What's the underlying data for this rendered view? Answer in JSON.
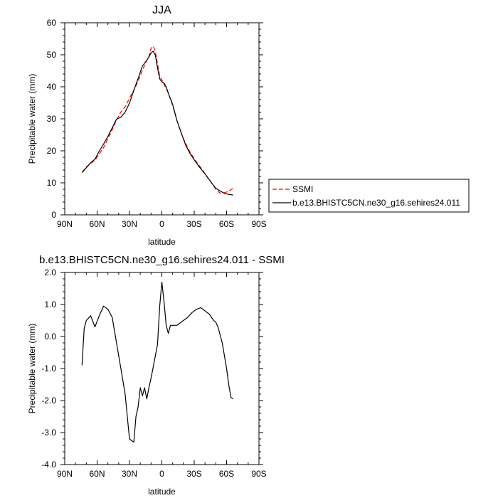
{
  "chart_data": [
    {
      "type": "line",
      "title": "JJA",
      "xlabel": "latitude",
      "ylabel": "Precipitable water (mm)",
      "xlim": [
        90,
        -90
      ],
      "ylim": [
        0,
        60
      ],
      "x_ticks": [
        {
          "value": 90,
          "label": "90N"
        },
        {
          "value": 60,
          "label": "60N"
        },
        {
          "value": 30,
          "label": "30N"
        },
        {
          "value": 0,
          "label": "0"
        },
        {
          "value": -30,
          "label": "30S"
        },
        {
          "value": -60,
          "label": "60S"
        },
        {
          "value": -90,
          "label": "90S"
        }
      ],
      "y_ticks": [
        {
          "value": 0,
          "label": "0"
        },
        {
          "value": 10,
          "label": "10"
        },
        {
          "value": 20,
          "label": "20"
        },
        {
          "value": 30,
          "label": "30"
        },
        {
          "value": 40,
          "label": "40"
        },
        {
          "value": 50,
          "label": "50"
        },
        {
          "value": 60,
          "label": "60"
        }
      ],
      "legend": {
        "placement": "right"
      },
      "series": [
        {
          "name": "SSMI",
          "color": "#ff0000",
          "dash": "dashed",
          "x": [
            74,
            70,
            66,
            62,
            58,
            54,
            50,
            46,
            42,
            38,
            34,
            30,
            26,
            22,
            18,
            14,
            12,
            10,
            8,
            6,
            4,
            2,
            0,
            -2,
            -4,
            -6,
            -10,
            -14,
            -18,
            -22,
            -26,
            -30,
            -34,
            -38,
            -42,
            -46,
            -50,
            -54,
            -58,
            -62,
            -66
          ],
          "y": [
            13.3,
            15,
            16,
            17.1,
            19,
            21,
            23.8,
            26.6,
            29.6,
            32.1,
            33.7,
            36.5,
            38.9,
            41.7,
            45.2,
            48.2,
            49.5,
            52,
            52.7,
            51,
            47.2,
            43.3,
            42.2,
            40.8,
            39.5,
            38,
            34.1,
            29.4,
            25.4,
            22.3,
            19.7,
            17.5,
            15.7,
            13.9,
            11.8,
            10,
            8,
            6.8,
            6.9,
            7.4,
            8.3
          ]
        },
        {
          "name": "b.e13.BHISTC5CN.ne30_g16.sehires24.011",
          "color": "#000000",
          "dash": "solid",
          "x": [
            74,
            70,
            66,
            62,
            58,
            54,
            50,
            46,
            42,
            38,
            34,
            30,
            26,
            22,
            18,
            14,
            12,
            10,
            8,
            6,
            4,
            2,
            0,
            -2,
            -4,
            -6,
            -10,
            -14,
            -18,
            -22,
            -26,
            -30,
            -34,
            -38,
            -42,
            -46,
            -50,
            -54,
            -58,
            -62,
            -66
          ],
          "y": [
            13.2,
            14.7,
            16.3,
            17.4,
            19.9,
            22.1,
            24.5,
            27.2,
            29.9,
            30.5,
            32.1,
            34.9,
            38.9,
            42.6,
            46.5,
            48.3,
            49.3,
            50.6,
            51.1,
            49.8,
            45.9,
            42.5,
            41.5,
            41.2,
            40,
            38,
            34.5,
            29.5,
            25.6,
            21.8,
            19.2,
            17.2,
            15.3,
            13.6,
            11.9,
            10,
            8.3,
            7.5,
            6.7,
            6.4,
            6.2
          ]
        }
      ]
    },
    {
      "type": "line",
      "title": "b.e13.BHISTC5CN.ne30_g16.sehires24.011 - SSMI",
      "xlabel": "latitude",
      "ylabel": "Precipitable water (mm)",
      "xlim": [
        90,
        -90
      ],
      "ylim": [
        -4,
        2
      ],
      "x_ticks": [
        {
          "value": 90,
          "label": "90N"
        },
        {
          "value": 60,
          "label": "60N"
        },
        {
          "value": 30,
          "label": "30N"
        },
        {
          "value": 0,
          "label": "0"
        },
        {
          "value": -30,
          "label": "30S"
        },
        {
          "value": -60,
          "label": "60S"
        },
        {
          "value": -90,
          "label": "90S"
        }
      ],
      "y_ticks": [
        {
          "value": 2,
          "label": "2.0"
        },
        {
          "value": 1,
          "label": "1.0"
        },
        {
          "value": 0,
          "label": "0.0"
        },
        {
          "value": -1,
          "label": "-1.0"
        },
        {
          "value": -2,
          "label": "-2.0"
        },
        {
          "value": -3,
          "label": "-3.0"
        },
        {
          "value": -4,
          "label": "-4.0"
        }
      ],
      "series": [
        {
          "color": "#000000",
          "dash": "solid",
          "x": [
            74,
            72,
            70,
            66,
            62,
            58,
            54,
            50,
            46,
            42,
            38,
            34,
            30,
            26,
            24,
            22,
            20,
            18,
            16,
            14,
            12,
            10,
            8,
            6,
            4,
            2,
            0,
            -2,
            -4,
            -6,
            -8,
            -12,
            -14,
            -16,
            -20,
            -24,
            -28,
            -32,
            -36,
            -40,
            -42,
            -44,
            -46,
            -48,
            -50,
            -52,
            -56,
            -60,
            -62,
            -64,
            -66
          ],
          "y": [
            -0.9,
            0.25,
            0.5,
            0.65,
            0.3,
            0.65,
            0.95,
            0.85,
            0.6,
            -0.2,
            -1,
            -1.8,
            -3.2,
            -3.3,
            -2.5,
            -2.2,
            -1.6,
            -1.85,
            -1.6,
            -1.95,
            -1.6,
            -1.3,
            -0.95,
            -0.6,
            -0.25,
            0.95,
            1.7,
            1.1,
            0.35,
            0.1,
            0.35,
            0.35,
            0.35,
            0.4,
            0.5,
            0.6,
            0.75,
            0.85,
            0.9,
            0.8,
            0.75,
            0.7,
            0.6,
            0.5,
            0.45,
            0.3,
            -0.2,
            -1,
            -1.5,
            -1.9,
            -1.95
          ]
        }
      ]
    }
  ]
}
